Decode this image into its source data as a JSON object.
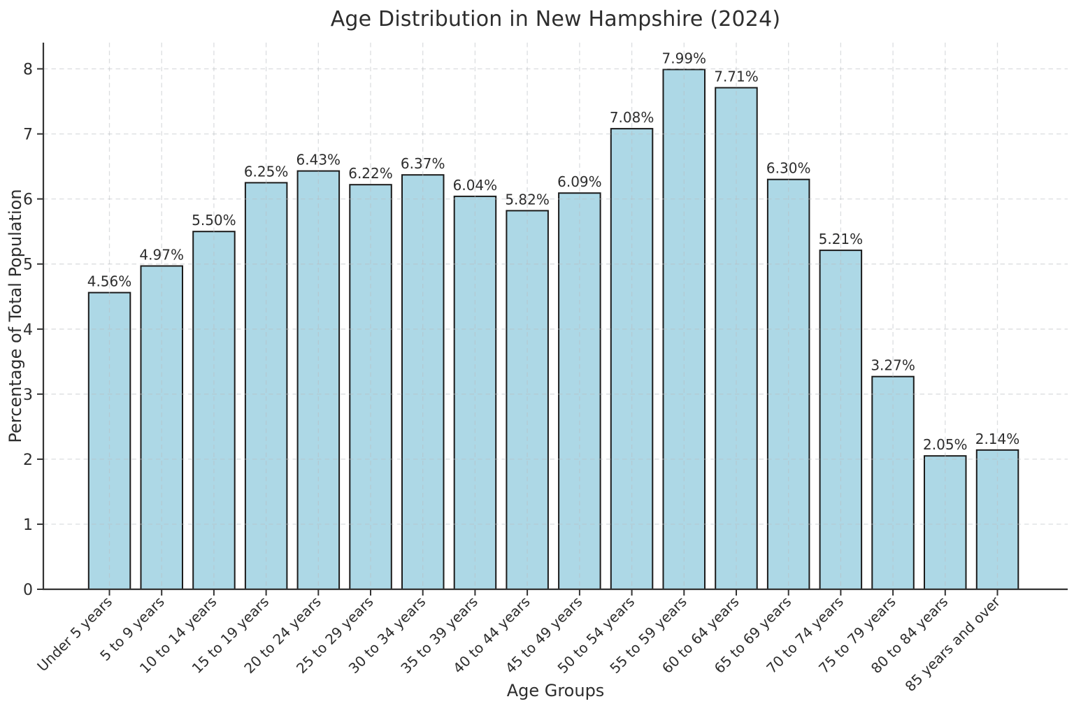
{
  "chart_data": {
    "type": "bar",
    "title": "Age Distribution in New Hampshire (2024)",
    "xlabel": "Age Groups",
    "ylabel": "Percentage of Total Population",
    "categories": [
      "Under 5 years",
      "5 to 9 years",
      "10 to 14 years",
      "15 to 19 years",
      "20 to 24 years",
      "25 to 29 years",
      "30 to 34 years",
      "35 to 39 years",
      "40 to 44 years",
      "45 to 49 years",
      "50 to 54 years",
      "55 to 59 years",
      "60 to 64 years",
      "65 to 69 years",
      "70 to 74 years",
      "75 to 79 years",
      "80 to 84 years",
      "85 years and over"
    ],
    "values": [
      4.56,
      4.97,
      5.5,
      6.25,
      6.43,
      6.22,
      6.37,
      6.04,
      5.82,
      6.09,
      7.08,
      7.99,
      7.71,
      6.3,
      5.21,
      3.27,
      2.05,
      2.14
    ],
    "bar_labels": [
      "4.56%",
      "4.97%",
      "5.50%",
      "6.25%",
      "6.43%",
      "6.22%",
      "6.37%",
      "6.04%",
      "5.82%",
      "6.09%",
      "7.08%",
      "7.99%",
      "7.71%",
      "6.30%",
      "5.21%",
      "3.27%",
      "2.05%",
      "2.14%"
    ],
    "ytick_labels": [
      "0",
      "1",
      "2",
      "3",
      "4",
      "5",
      "6",
      "7",
      "8"
    ],
    "yticks": [
      0,
      1,
      2,
      3,
      4,
      5,
      6,
      7,
      8
    ],
    "ylim": [
      0,
      8.4
    ],
    "grid": true,
    "legend": "none",
    "colors": {
      "bar_fill": "#add8e6",
      "bar_edge": "#1b1b1b",
      "grid": "#b9bdc1",
      "axis": "#333333",
      "text": "#2d2d2d"
    }
  }
}
